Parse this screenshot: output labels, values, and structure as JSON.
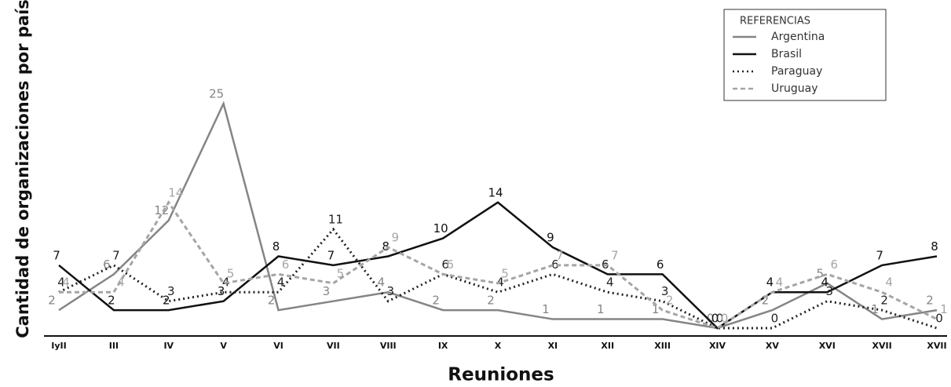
{
  "chart_data": {
    "type": "line",
    "y_label": "Cantidad de organizaciones por país",
    "x_label": "Reuniones",
    "legend_title": "REFERENCIAS",
    "categories": [
      "IyII",
      "III",
      "IV",
      "V",
      "VI",
      "VII",
      "VIII",
      "IX",
      "X",
      "XI",
      "XII",
      "XIII",
      "XIV",
      "XV",
      "XVI",
      "XVII",
      "XVII"
    ],
    "ylim": [
      0,
      25
    ],
    "series": [
      {
        "name": "Argentina",
        "color": "#858585",
        "style": "solid",
        "values": [
          2,
          6,
          12,
          25,
          2,
          3,
          4,
          2,
          2,
          1,
          1,
          1,
          0,
          2,
          5,
          1,
          2
        ]
      },
      {
        "name": "Brasil",
        "color": "#111111",
        "style": "solid",
        "values": [
          7,
          2,
          2,
          3,
          8,
          7,
          8,
          10,
          14,
          9,
          6,
          6,
          0,
          4,
          4,
          7,
          8
        ]
      },
      {
        "name": "Paraguay",
        "color": "#222222",
        "style": "dotted",
        "values": [
          4,
          7,
          3,
          4,
          4,
          11,
          3,
          6,
          4,
          6,
          4,
          3,
          0,
          0,
          3,
          2,
          0
        ]
      },
      {
        "name": "Uruguay",
        "color": "#a5a5a5",
        "style": "dashed",
        "values": [
          4,
          4,
          14,
          5,
          6,
          5,
          9,
          6,
          5,
          7,
          7,
          2,
          0,
          4,
          6,
          4,
          1
        ]
      }
    ]
  }
}
